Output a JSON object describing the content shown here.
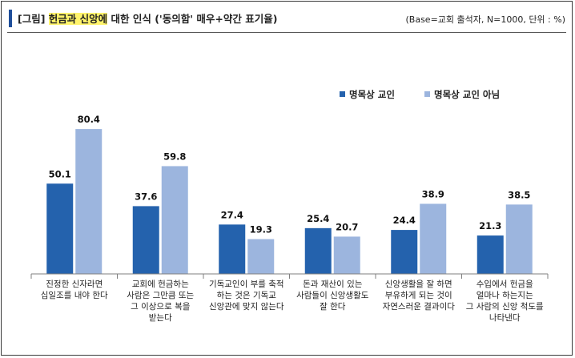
{
  "header": {
    "title_prefix": "[그림] ",
    "title_highlight": "헌금과 신앙에",
    "title_suffix": " 대한 인식 ('동의함' 매우+약간 표기율)",
    "base_note": "(Base=교회 출석자, N=1000, 단위 : %)"
  },
  "colors": {
    "series1": "#2462ad",
    "series2": "#9cb5de",
    "axis": "#7f7f7f"
  },
  "chart_data": {
    "type": "bar",
    "title": "헌금과 신앙에 대한 인식 ('동의함' 매우+약간 표기율)",
    "unit": "%",
    "ylim": [
      0,
      100
    ],
    "grid": false,
    "legend_position": "top-right",
    "categories": [
      [
        "진정한 신자라면",
        "십일조를 내야 한다"
      ],
      [
        "교회에 헌금하는",
        "사람은 그만큼 또는",
        "그 이상으로 복을",
        "받는다"
      ],
      [
        "기독교인이 부를 축적",
        "하는 것은 기독교",
        "신앙관에 맞지 않는다"
      ],
      [
        "돈과 재산이 있는",
        "사람들이 신앙생활도",
        "잘 한다"
      ],
      [
        "신앙생활을 잘 하면",
        "부유하게 되는 것이",
        "자연스러운 결과이다"
      ],
      [
        "수입에서 헌금을",
        "얼마나 하는지는",
        "그 사람의 신앙 척도를",
        "나타낸다"
      ]
    ],
    "series": [
      {
        "name": "명목상 교인",
        "values": [
          50.1,
          37.6,
          27.4,
          25.4,
          24.4,
          21.3
        ]
      },
      {
        "name": "명목상 교인 아님",
        "values": [
          80.4,
          59.8,
          19.3,
          20.7,
          38.9,
          38.5
        ]
      }
    ]
  }
}
